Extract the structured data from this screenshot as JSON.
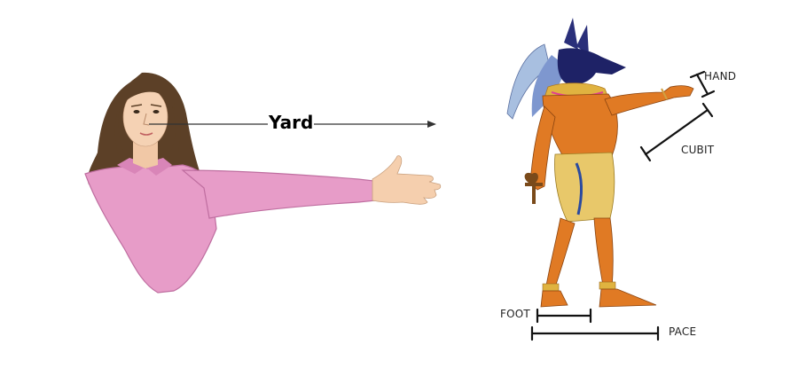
{
  "diagram": {
    "labels": {
      "yard": "Yard",
      "hand": "HAND",
      "cubit": "CUBIT",
      "foot": "FOOT",
      "pace": "PACE"
    }
  }
}
